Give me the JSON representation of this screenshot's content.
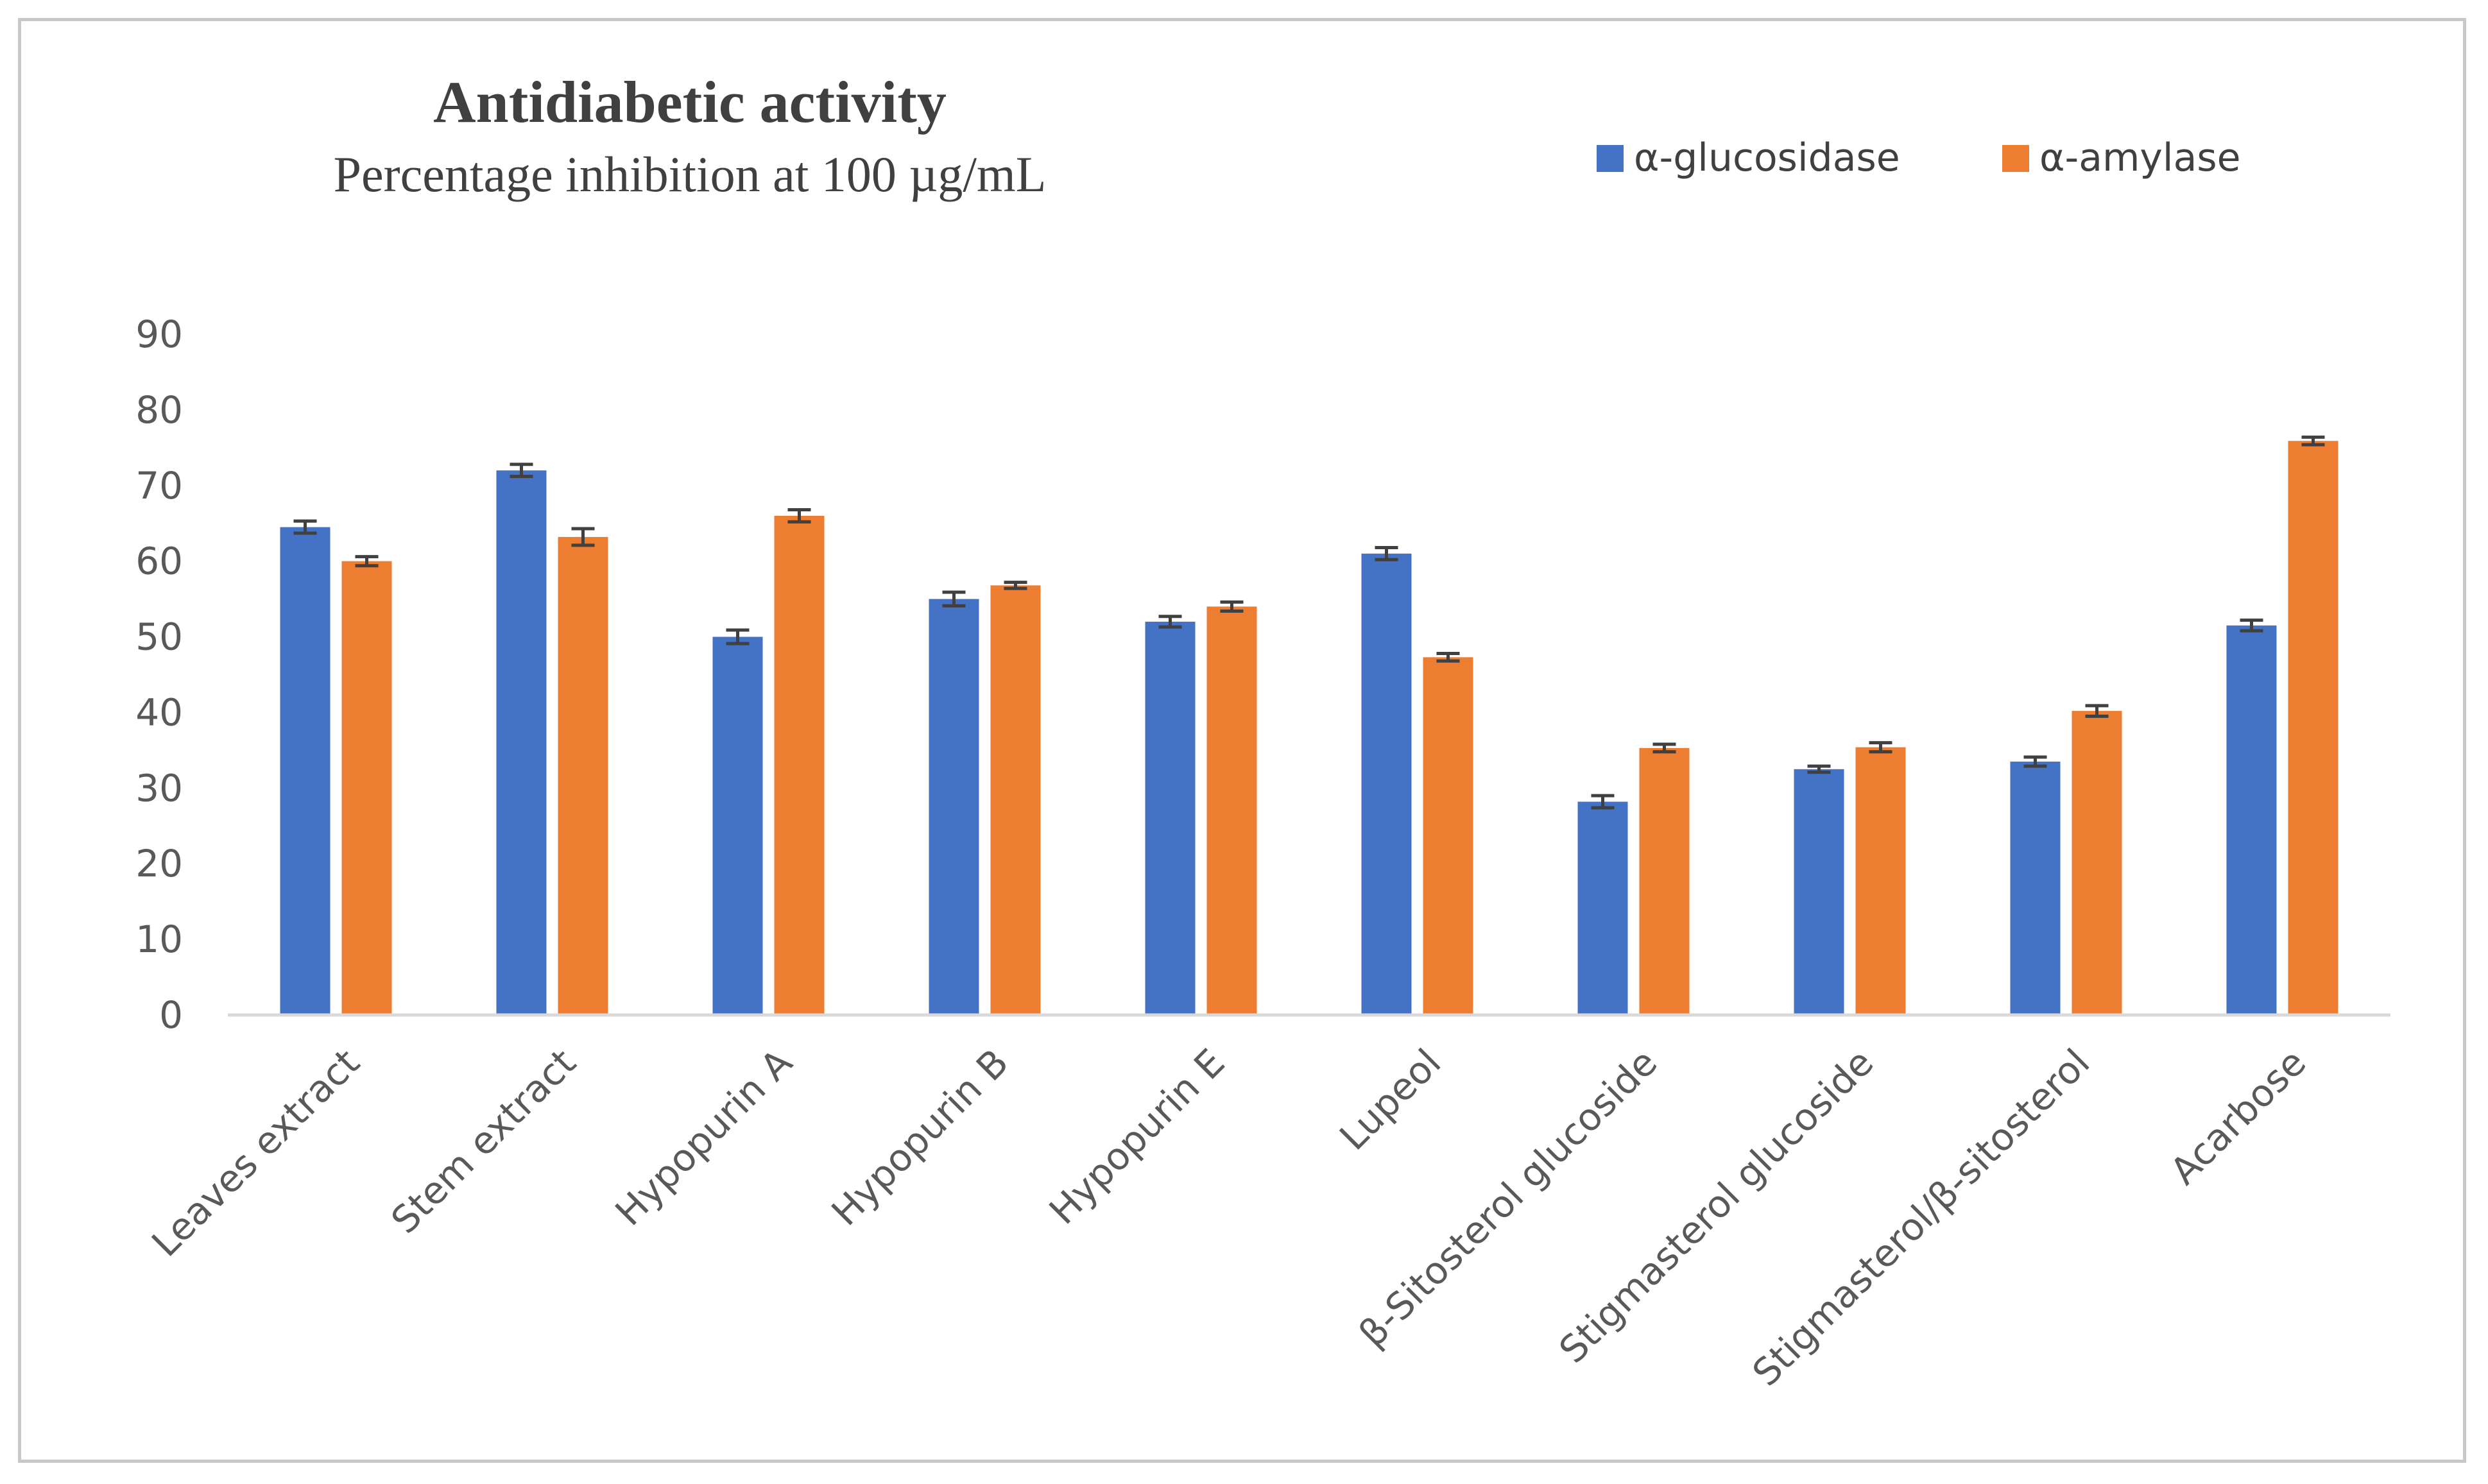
{
  "chart_data": {
    "type": "bar",
    "title": "Antidiabetic activity",
    "subtitle": "Percentage inhibition at 100 µg/mL",
    "xlabel": "",
    "ylabel": "",
    "ylim": [
      0,
      90
    ],
    "yticks": [
      0,
      10,
      20,
      30,
      40,
      50,
      60,
      70,
      80,
      90
    ],
    "grid": false,
    "legend_position": "top-right",
    "error_bars": true,
    "categories": [
      "Leaves extract",
      "Stem extract",
      "Hypopurin A",
      "Hypopurin B",
      "Hypopurin E",
      "Lupeol",
      "β-Sitosterol glucoside",
      "Stigmasterol glucoside",
      "Stigmasterol/β-sitosterol",
      "Acarbose"
    ],
    "series": [
      {
        "name": "α-glucosidase",
        "color": "#4472c4",
        "values": [
          64.5,
          72.0,
          50.0,
          55.0,
          52.0,
          61.0,
          28.2,
          32.5,
          33.5,
          51.5
        ],
        "errors": [
          0.8,
          0.8,
          0.9,
          0.9,
          0.7,
          0.8,
          0.8,
          0.4,
          0.6,
          0.7
        ]
      },
      {
        "name": "α-amylase",
        "color": "#ed7d31",
        "values": [
          60.0,
          63.2,
          66.0,
          56.8,
          54.0,
          47.3,
          35.3,
          35.4,
          40.2,
          75.9
        ],
        "errors": [
          0.6,
          1.1,
          0.8,
          0.4,
          0.6,
          0.5,
          0.5,
          0.6,
          0.7,
          0.5
        ]
      }
    ]
  }
}
